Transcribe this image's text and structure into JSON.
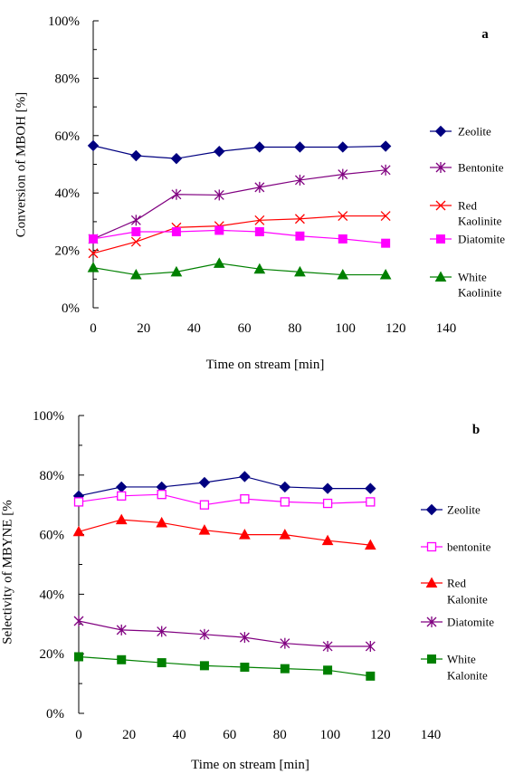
{
  "chart_data": [
    {
      "type": "line",
      "panel_label": "a",
      "xlabel": "Time on stream [min]",
      "ylabel": "Conversion of MBOH   [%]",
      "xlim": [
        0,
        140
      ],
      "ylim": [
        0,
        100
      ],
      "x_ticks": [
        0,
        20,
        40,
        60,
        80,
        100,
        120,
        140
      ],
      "y_ticks": [
        "0%",
        "20%",
        "40%",
        "60%",
        "80%",
        "100%"
      ],
      "grid": false,
      "legend_position": "right",
      "x": [
        0,
        17,
        33,
        50,
        66,
        82,
        99,
        116
      ],
      "series": [
        {
          "name": "Zeolite",
          "marker": "diamond",
          "color": "#000080",
          "values": [
            56.5,
            53,
            52,
            54.5,
            56,
            56,
            56,
            56.3
          ]
        },
        {
          "name": "Bentonite",
          "marker": "asterisk",
          "color": "#800080",
          "values": [
            24,
            30.5,
            39.5,
            39.3,
            42,
            44.5,
            46.5,
            48
          ]
        },
        {
          "name": [
            "Red",
            "Kaolinite"
          ],
          "marker": "x",
          "color": "#ff0000",
          "values": [
            19,
            23,
            28,
            28.5,
            30.5,
            31,
            32,
            32
          ]
        },
        {
          "name": "Diatomite",
          "marker": "square",
          "color": "#ff00ff",
          "values": [
            24,
            26.5,
            26.5,
            27,
            26.5,
            25,
            24,
            22.5
          ]
        },
        {
          "name": [
            "White",
            "Kaolinite"
          ],
          "marker": "triangle",
          "color": "#008000",
          "values": [
            14,
            11.5,
            12.5,
            15.5,
            13.5,
            12.5,
            11.5,
            11.5
          ]
        }
      ]
    },
    {
      "type": "line",
      "panel_label": "b",
      "xlabel": "Time on stream [min]",
      "ylabel": "Selectivity of MBYNE [%",
      "xlim": [
        0,
        140
      ],
      "ylim": [
        0,
        100
      ],
      "x_ticks": [
        0,
        20,
        40,
        60,
        80,
        100,
        120,
        140
      ],
      "y_ticks": [
        "0%",
        "20%",
        "40%",
        "60%",
        "80%",
        "100%"
      ],
      "grid": false,
      "legend_position": "right",
      "x": [
        0,
        17,
        33,
        50,
        66,
        82,
        99,
        116
      ],
      "series": [
        {
          "name": "Zeolite",
          "marker": "diamond",
          "color": "#000080",
          "values": [
            73,
            76,
            76,
            77.5,
            79.5,
            76,
            75.5,
            75.5
          ]
        },
        {
          "name": "bentonite",
          "marker": "square-open",
          "color": "#ff00ff",
          "values": [
            71,
            73,
            73.5,
            70,
            72,
            71,
            70.5,
            71
          ]
        },
        {
          "name": [
            "Red",
            "Kalonite"
          ],
          "marker": "triangle",
          "color": "#ff0000",
          "values": [
            61,
            65,
            64,
            61.5,
            60,
            60,
            58,
            56.5
          ]
        },
        {
          "name": "Diatomite",
          "marker": "asterisk",
          "color": "#800080",
          "values": [
            31,
            28,
            27.5,
            26.5,
            25.5,
            23.5,
            22.5,
            22.5
          ]
        },
        {
          "name": [
            "White",
            "Kalonite"
          ],
          "marker": "square",
          "color": "#008000",
          "values": [
            19,
            18,
            17,
            16,
            15.5,
            15,
            14.5,
            12.5
          ]
        }
      ]
    }
  ]
}
